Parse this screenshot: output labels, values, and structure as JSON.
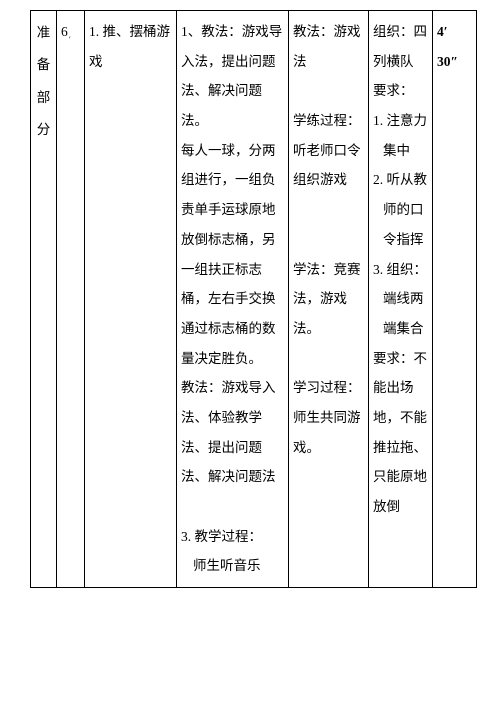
{
  "col1": "准备部分",
  "col2_num": "6",
  "col3_item": "1. 推、摆桶游戏",
  "col4_p1": "1、教法：游戏导入法，提出问题法、解决问题法。",
  "col4_p2": "每人一球，分两组进行，一组负责单手运球原地放倒标志桶，另一组扶正标志桶，左右手交换通过标志桶的数量决定胜负。",
  "col4_p3": "教法：游戏导入法、体验教学法、提出问题法、解决问题法",
  "col4_p4": "3. 教学过程：",
  "col4_p5": "师生听音乐",
  "col5_p1": "教法：游戏法",
  "col5_p2": "学练过程：听老师口令组织游戏",
  "col5_p3": "学法：竞赛法，游戏法。",
  "col5_p4": "学习过程：师生共同游戏。",
  "col6_p1": "组织：四列横队",
  "col6_p2": "要求：",
  "col6_li1": "1. 注意力集中",
  "col6_li2": "2. 听从教师的口令指挥",
  "col6_li3": "3. 组织：端线两端集合",
  "col6_p3": "要求：不能出场地，不能推拉拖、只能原地放倒",
  "col7_t1": "4′",
  "col7_t2": "30″"
}
